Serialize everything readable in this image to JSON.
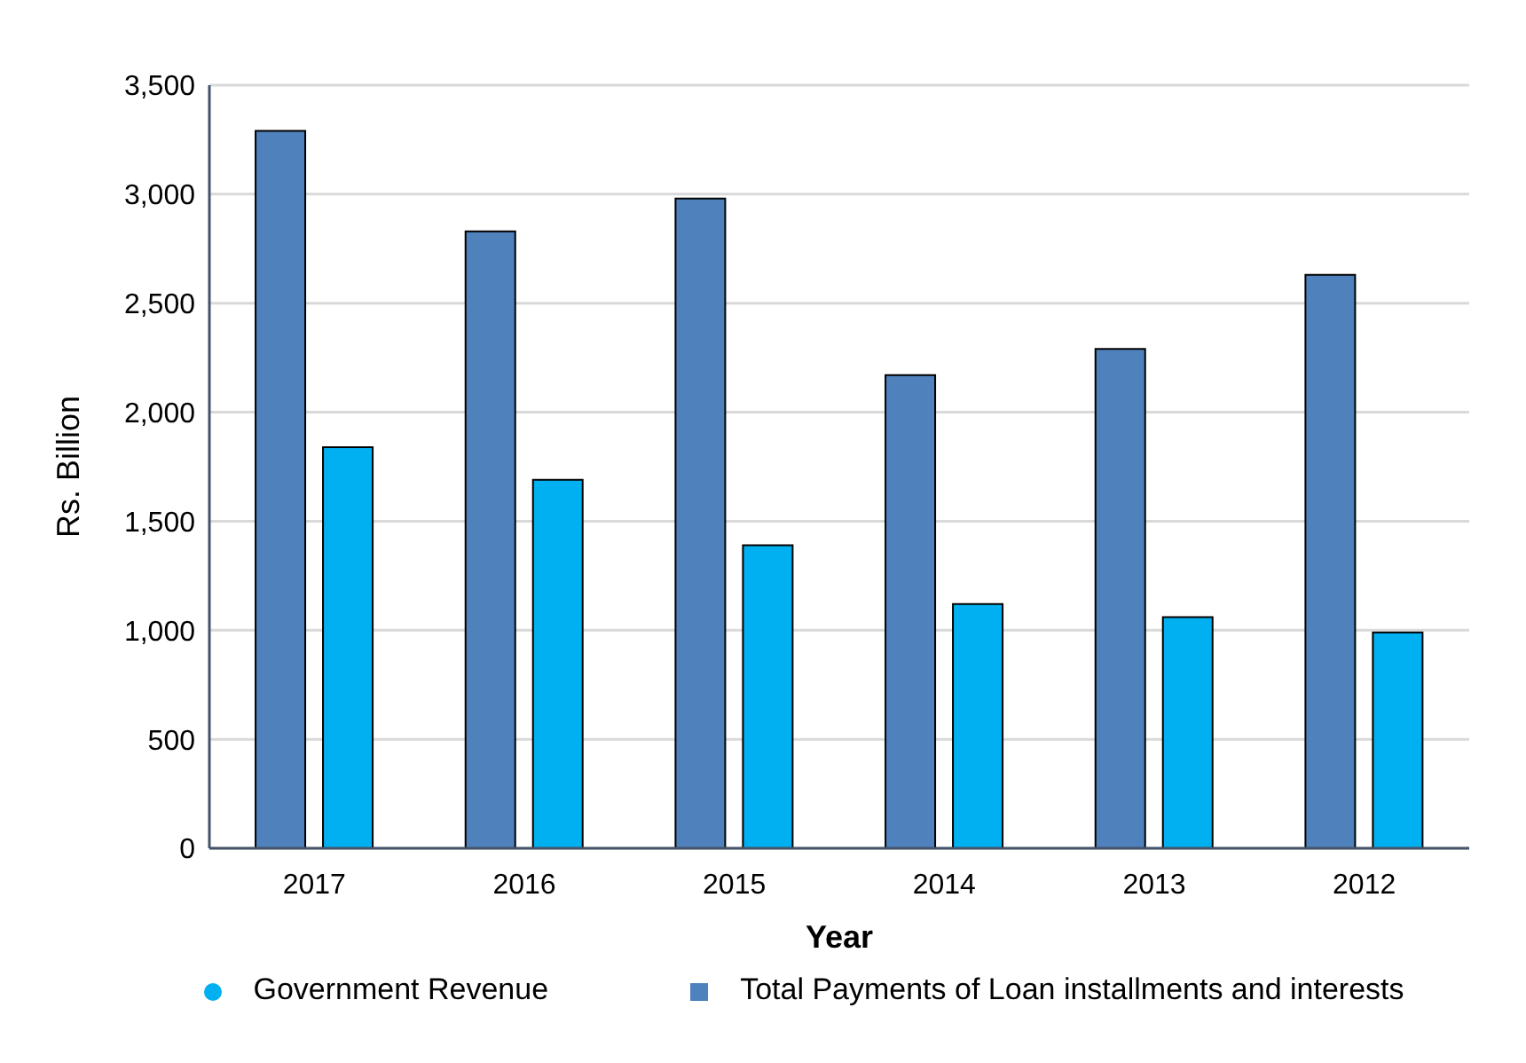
{
  "chart_data": {
    "type": "bar",
    "xlabel": "Year",
    "ylabel": "Rs. Billion",
    "categories": [
      "2017",
      "2016",
      "2015",
      "2014",
      "2013",
      "2012"
    ],
    "series": [
      {
        "name": "Total Payments of  Loan installments and interests",
        "color": "#4f81bd",
        "values": [
          3290,
          2830,
          2980,
          2170,
          2290,
          2630
        ]
      },
      {
        "name": "Government Revenue",
        "color": "#00b0f0",
        "values": [
          1840,
          1690,
          1390,
          1120,
          1060,
          990
        ]
      }
    ],
    "ylim": [
      0,
      3500
    ],
    "yticks": [
      {
        "value": 0,
        "label": "0"
      },
      {
        "value": 500,
        "label": "500"
      },
      {
        "value": 1000,
        "label": "1,000"
      },
      {
        "value": 1500,
        "label": "1,500"
      },
      {
        "value": 2000,
        "label": "2,000"
      },
      {
        "value": 2500,
        "label": "2,500"
      },
      {
        "value": 3000,
        "label": "3,000"
      },
      {
        "value": 3500,
        "label": "3,500"
      }
    ],
    "grid": "y",
    "legend": "bottom"
  }
}
